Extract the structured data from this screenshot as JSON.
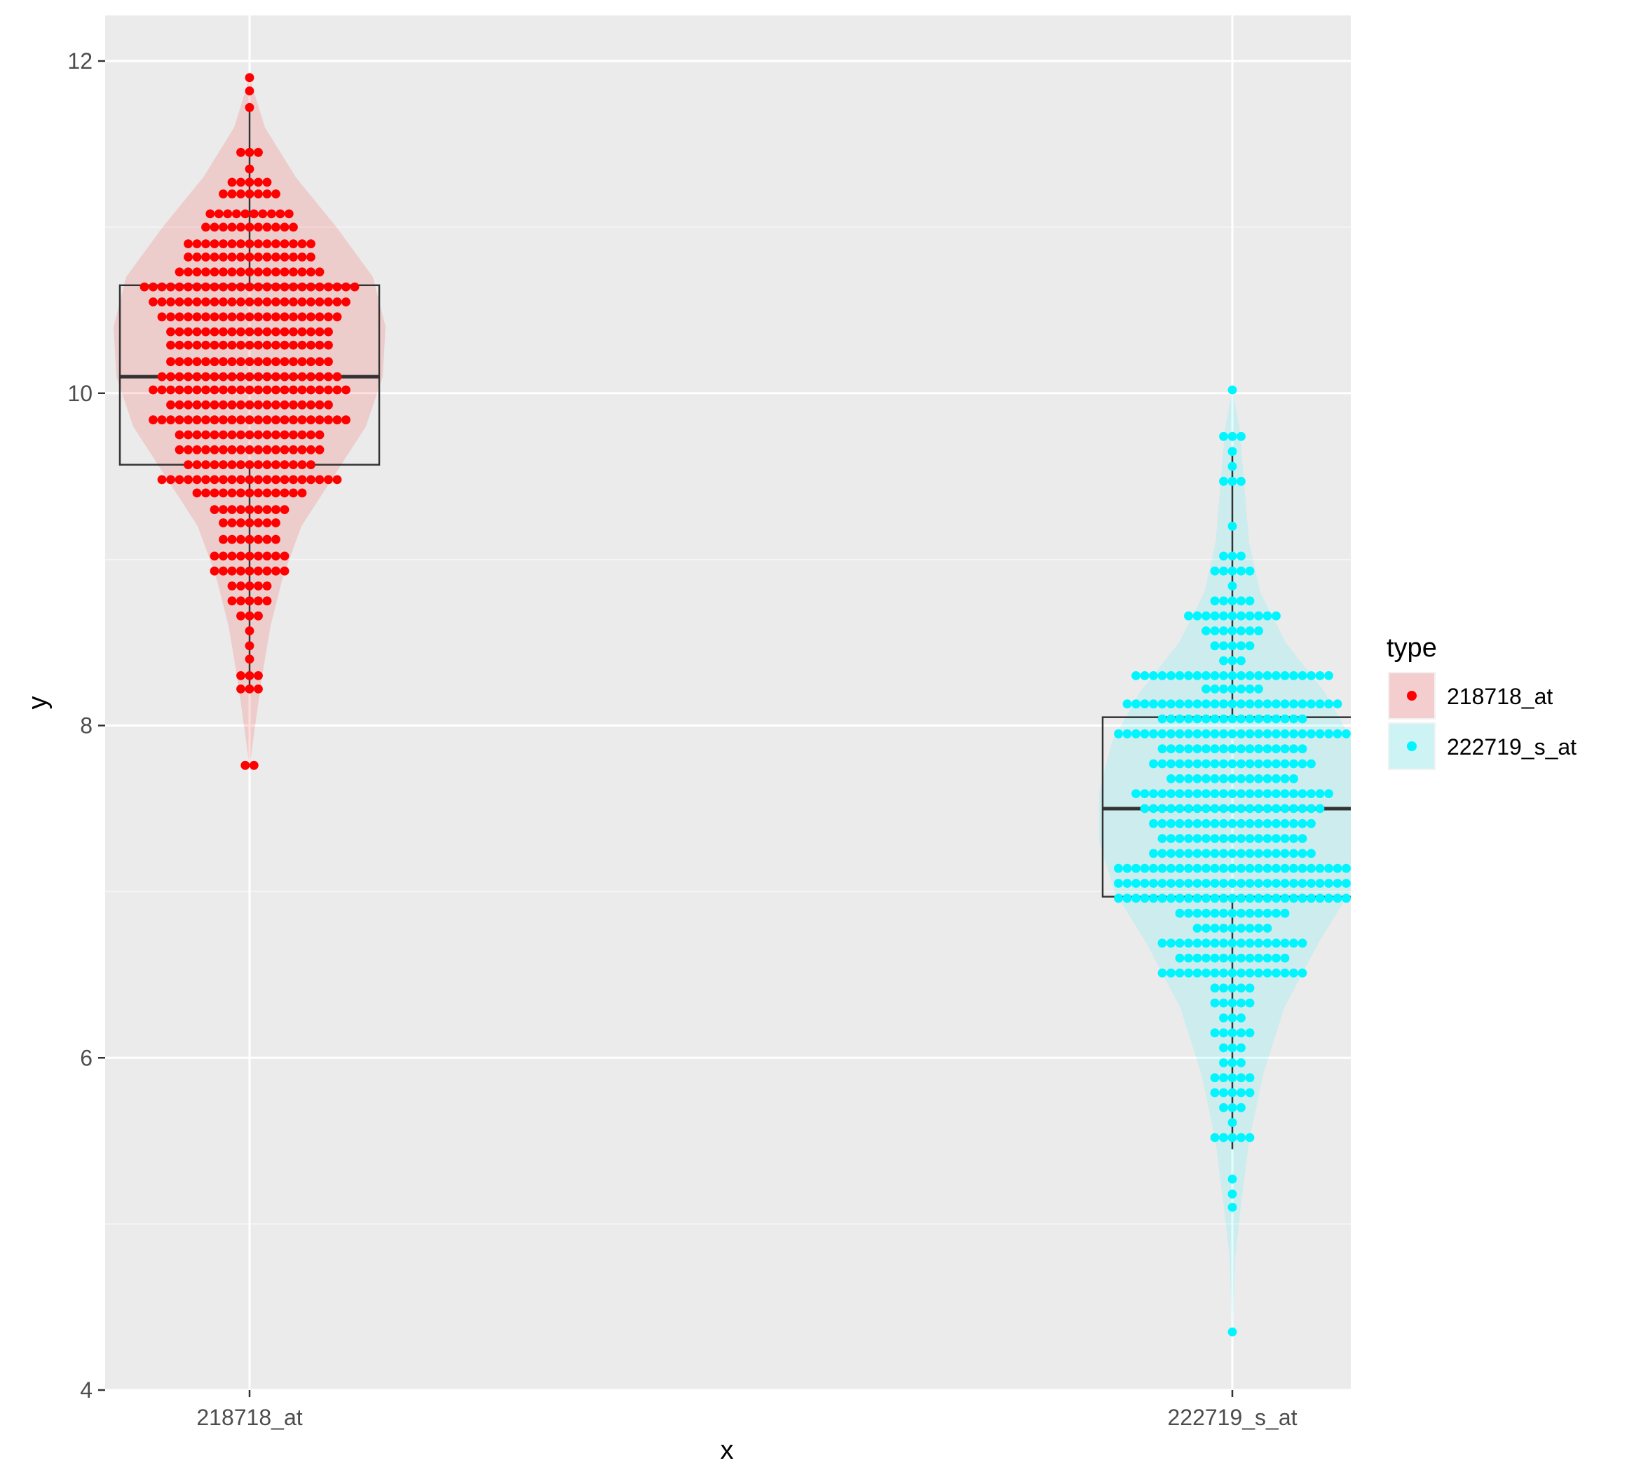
{
  "chart_data": {
    "type": "violin",
    "xlabel": "x",
    "ylabel": "y",
    "categories": [
      "218718_at",
      "222719_s_at"
    ],
    "ylim": [
      4,
      12.3
    ],
    "yticks": [
      4,
      6,
      8,
      10,
      12
    ],
    "grid": true,
    "legend": {
      "title": "type",
      "position": "right",
      "entries": [
        "218718_at",
        "222719_s_at"
      ]
    },
    "colors": {
      "218718_at": "#ff0000",
      "222719_s_at": "#00f5ff"
    },
    "series": [
      {
        "name": "218718_at",
        "box": {
          "min": 8.2,
          "q1": 9.57,
          "median": 10.1,
          "q3": 10.65,
          "max": 11.7
        },
        "points_range": [
          7.75,
          11.9
        ],
        "dotplot_rows": [
          [
            11.9,
            1
          ],
          [
            11.82,
            1
          ],
          [
            11.72,
            1
          ],
          [
            11.45,
            3
          ],
          [
            11.35,
            1
          ],
          [
            11.27,
            5
          ],
          [
            11.2,
            7
          ],
          [
            11.08,
            10
          ],
          [
            11.0,
            11
          ],
          [
            10.9,
            15
          ],
          [
            10.82,
            15
          ],
          [
            10.73,
            17
          ],
          [
            10.64,
            25
          ],
          [
            10.55,
            23
          ],
          [
            10.46,
            21
          ],
          [
            10.37,
            19
          ],
          [
            10.29,
            19
          ],
          [
            10.19,
            19
          ],
          [
            10.1,
            21
          ],
          [
            10.02,
            23
          ],
          [
            9.93,
            19
          ],
          [
            9.84,
            23
          ],
          [
            9.75,
            17
          ],
          [
            9.66,
            17
          ],
          [
            9.57,
            15
          ],
          [
            9.48,
            21
          ],
          [
            9.4,
            13
          ],
          [
            9.3,
            9
          ],
          [
            9.22,
            7
          ],
          [
            9.12,
            7
          ],
          [
            9.02,
            9
          ],
          [
            8.93,
            9
          ],
          [
            8.84,
            5
          ],
          [
            8.75,
            5
          ],
          [
            8.66,
            3
          ],
          [
            8.57,
            1
          ],
          [
            8.48,
            1
          ],
          [
            8.4,
            1
          ],
          [
            8.3,
            3
          ],
          [
            8.22,
            3
          ],
          [
            7.76,
            2
          ]
        ],
        "violin_widths": [
          [
            7.75,
            0.0
          ],
          [
            8.0,
            0.04
          ],
          [
            8.3,
            0.09
          ],
          [
            8.6,
            0.15
          ],
          [
            8.9,
            0.24
          ],
          [
            9.2,
            0.37
          ],
          [
            9.5,
            0.6
          ],
          [
            9.8,
            0.83
          ],
          [
            10.1,
            0.95
          ],
          [
            10.4,
            0.97
          ],
          [
            10.7,
            0.88
          ],
          [
            11.0,
            0.62
          ],
          [
            11.3,
            0.33
          ],
          [
            11.6,
            0.11
          ],
          [
            11.9,
            0.0
          ]
        ]
      },
      {
        "name": "222719_s_at",
        "box": {
          "min": 5.45,
          "q1": 6.97,
          "median": 7.5,
          "q3": 8.05,
          "max": 9.65
        },
        "points_range": [
          4.35,
          10.02
        ],
        "dotplot_rows": [
          [
            10.02,
            1
          ],
          [
            9.74,
            3
          ],
          [
            9.65,
            1
          ],
          [
            9.56,
            1
          ],
          [
            9.47,
            3
          ],
          [
            9.2,
            1
          ],
          [
            9.02,
            3
          ],
          [
            8.93,
            5
          ],
          [
            8.84,
            1
          ],
          [
            8.75,
            5
          ],
          [
            8.66,
            11
          ],
          [
            8.57,
            7
          ],
          [
            8.48,
            5
          ],
          [
            8.39,
            3
          ],
          [
            8.3,
            23
          ],
          [
            8.22,
            7
          ],
          [
            8.13,
            25
          ],
          [
            8.04,
            17
          ],
          [
            7.95,
            27
          ],
          [
            7.86,
            17
          ],
          [
            7.77,
            19
          ],
          [
            7.68,
            15
          ],
          [
            7.59,
            23
          ],
          [
            7.5,
            21
          ],
          [
            7.41,
            19
          ],
          [
            7.32,
            17
          ],
          [
            7.23,
            19
          ],
          [
            7.14,
            27
          ],
          [
            7.05,
            27
          ],
          [
            6.96,
            27
          ],
          [
            6.87,
            13
          ],
          [
            6.78,
            9
          ],
          [
            6.69,
            17
          ],
          [
            6.6,
            13
          ],
          [
            6.51,
            17
          ],
          [
            6.42,
            5
          ],
          [
            6.33,
            5
          ],
          [
            6.24,
            3
          ],
          [
            6.15,
            5
          ],
          [
            6.06,
            3
          ],
          [
            5.97,
            3
          ],
          [
            5.88,
            5
          ],
          [
            5.79,
            5
          ],
          [
            5.7,
            3
          ],
          [
            5.61,
            1
          ],
          [
            5.52,
            5
          ],
          [
            5.27,
            1
          ],
          [
            5.18,
            1
          ],
          [
            5.1,
            1
          ],
          [
            4.35,
            1
          ]
        ],
        "violin_widths": [
          [
            4.35,
            0.0
          ],
          [
            4.8,
            0.02
          ],
          [
            5.1,
            0.06
          ],
          [
            5.5,
            0.12
          ],
          [
            5.9,
            0.22
          ],
          [
            6.3,
            0.37
          ],
          [
            6.7,
            0.62
          ],
          [
            7.0,
            0.84
          ],
          [
            7.3,
            0.95
          ],
          [
            7.6,
            0.95
          ],
          [
            7.9,
            0.86
          ],
          [
            8.2,
            0.66
          ],
          [
            8.5,
            0.38
          ],
          [
            8.8,
            0.2
          ],
          [
            9.1,
            0.12
          ],
          [
            9.5,
            0.08
          ],
          [
            9.8,
            0.05
          ],
          [
            10.02,
            0.0
          ]
        ]
      }
    ]
  }
}
